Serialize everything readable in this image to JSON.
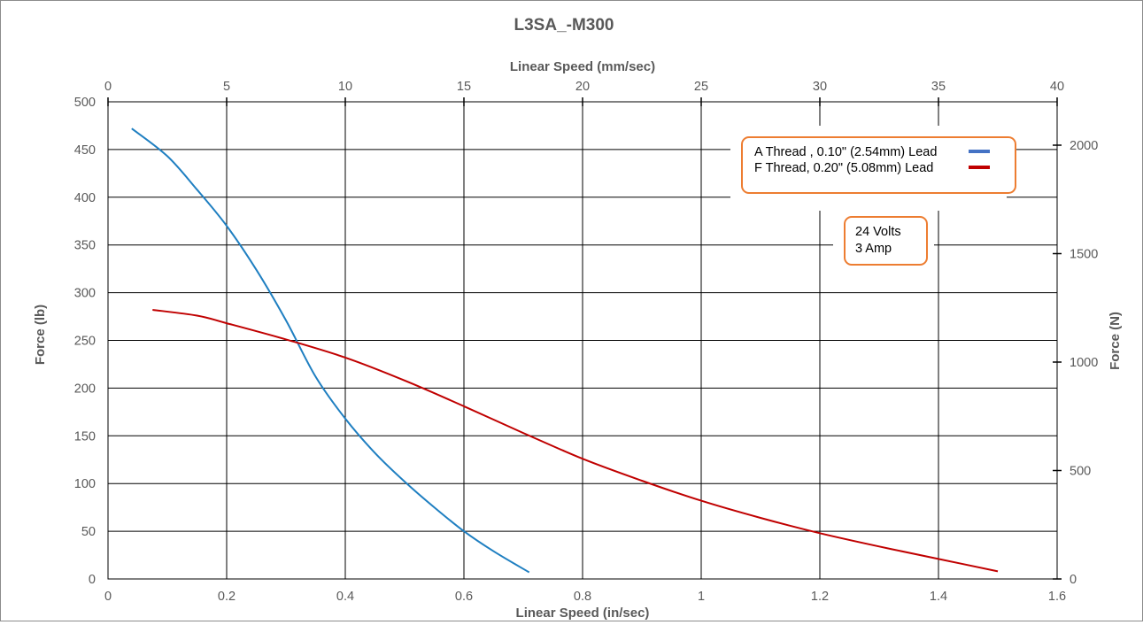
{
  "chart_data": {
    "type": "line",
    "title": "L3SA_-M300",
    "xlabel": "Linear Speed (in/sec)",
    "x2label": "Linear Speed (mm/sec)",
    "ylabel": "Force (lb)",
    "y2label": "Force (N)",
    "xlim": [
      0,
      1.6
    ],
    "x2lim": [
      0,
      40
    ],
    "ylim": [
      0,
      500
    ],
    "y2lim": [
      0,
      2200
    ],
    "x_ticks": [
      "0",
      "0.2",
      "0.4",
      "0.6",
      "0.8",
      "1",
      "1.2",
      "1.4",
      "1.6"
    ],
    "x2_ticks": [
      "0",
      "5",
      "10",
      "15",
      "20",
      "25",
      "30",
      "35",
      "40"
    ],
    "y_ticks": [
      "0",
      "50",
      "100",
      "150",
      "200",
      "250",
      "300",
      "350",
      "400",
      "450",
      "500"
    ],
    "y2_ticks": [
      "0",
      "500",
      "1000",
      "1500",
      "2000"
    ],
    "grid": true,
    "legend_position": "top-right",
    "series": [
      {
        "name": "A Thread , 0.10\" (2.54mm) Lead",
        "color": "#1f7fc1",
        "x": [
          0.04,
          0.1,
          0.15,
          0.2,
          0.25,
          0.3,
          0.35,
          0.4,
          0.45,
          0.5,
          0.55,
          0.6,
          0.65,
          0.71
        ],
        "y": [
          472,
          443,
          408,
          370,
          324,
          271,
          212,
          168,
          132,
          102,
          75,
          50,
          29,
          7
        ]
      },
      {
        "name": "F Thread, 0.20\"  (5.08mm) Lead",
        "color": "#c00000",
        "x": [
          0.075,
          0.15,
          0.2,
          0.3,
          0.4,
          0.5,
          0.6,
          0.7,
          0.8,
          0.9,
          1.0,
          1.1,
          1.2,
          1.3,
          1.4,
          1.5
        ],
        "y": [
          282,
          276,
          268,
          251,
          232,
          208,
          181,
          153,
          126,
          103,
          82,
          64,
          48,
          34,
          21,
          8
        ]
      }
    ],
    "annotations": [
      "24 Volts",
      "3 Amp"
    ]
  },
  "colors": {
    "legend_border": "#ed7d31",
    "grid": "#000000",
    "text": "#595959"
  }
}
